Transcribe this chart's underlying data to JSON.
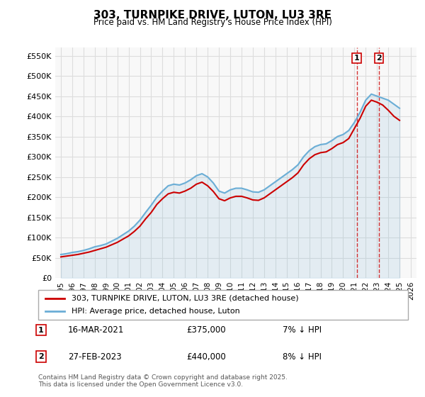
{
  "title": "303, TURNPIKE DRIVE, LUTON, LU3 3RE",
  "subtitle": "Price paid vs. HM Land Registry's House Price Index (HPI)",
  "ylabel_ticks": [
    "£0",
    "£50K",
    "£100K",
    "£150K",
    "£200K",
    "£250K",
    "£300K",
    "£350K",
    "£400K",
    "£450K",
    "£500K",
    "£550K"
  ],
  "ylim": [
    0,
    570000
  ],
  "xlim_start": 1994.5,
  "xlim_end": 2026.5,
  "hpi_color": "#6baed6",
  "price_color": "#cc0000",
  "grid_color": "#dddddd",
  "background_color": "#f8f8f8",
  "sale1_year": 2021.2,
  "sale1_price": 375000,
  "sale2_year": 2023.17,
  "sale2_price": 440000,
  "legend_label_red": "303, TURNPIKE DRIVE, LUTON, LU3 3RE (detached house)",
  "legend_label_blue": "HPI: Average price, detached house, Luton",
  "annotation1_date": "16-MAR-2021",
  "annotation1_price": "£375,000",
  "annotation1_hpi": "7% ↓ HPI",
  "annotation2_date": "27-FEB-2023",
  "annotation2_price": "£440,000",
  "annotation2_hpi": "8% ↓ HPI",
  "footer": "Contains HM Land Registry data © Crown copyright and database right 2025.\nThis data is licensed under the Open Government Licence v3.0.",
  "hpi_data": {
    "years": [
      1995,
      1995.5,
      1996,
      1996.5,
      1997,
      1997.5,
      1998,
      1998.5,
      1999,
      1999.5,
      2000,
      2000.5,
      2001,
      2001.5,
      2002,
      2002.5,
      2003,
      2003.5,
      2004,
      2004.5,
      2005,
      2005.5,
      2006,
      2006.5,
      2007,
      2007.5,
      2008,
      2008.5,
      2009,
      2009.5,
      2010,
      2010.5,
      2011,
      2011.5,
      2012,
      2012.5,
      2013,
      2013.5,
      2014,
      2014.5,
      2015,
      2015.5,
      2016,
      2016.5,
      2017,
      2017.5,
      2018,
      2018.5,
      2019,
      2019.5,
      2020,
      2020.5,
      2021,
      2021.5,
      2022,
      2022.5,
      2023,
      2023.5,
      2024,
      2024.5,
      2025
    ],
    "values": [
      58000,
      60000,
      63000,
      65000,
      68000,
      72000,
      77000,
      80000,
      84000,
      91000,
      98000,
      107000,
      116000,
      128000,
      143000,
      162000,
      180000,
      200000,
      215000,
      228000,
      232000,
      230000,
      235000,
      243000,
      253000,
      258000,
      250000,
      235000,
      215000,
      210000,
      218000,
      222000,
      222000,
      218000,
      213000,
      212000,
      218000,
      228000,
      238000,
      248000,
      258000,
      268000,
      280000,
      300000,
      315000,
      325000,
      330000,
      332000,
      340000,
      350000,
      355000,
      365000,
      385000,
      410000,
      440000,
      455000,
      450000,
      445000,
      440000,
      430000,
      420000
    ]
  },
  "price_data": {
    "years": [
      1995,
      1995.5,
      1996,
      1996.5,
      1997,
      1997.5,
      1998,
      1998.5,
      1999,
      1999.5,
      2000,
      2000.5,
      2001,
      2001.5,
      2002,
      2002.5,
      2003,
      2003.5,
      2004,
      2004.5,
      2005,
      2005.5,
      2006,
      2006.5,
      2007,
      2007.5,
      2008,
      2008.5,
      2009,
      2009.5,
      2010,
      2010.5,
      2011,
      2011.5,
      2012,
      2012.5,
      2013,
      2013.5,
      2014,
      2014.5,
      2015,
      2015.5,
      2016,
      2016.5,
      2017,
      2017.5,
      2018,
      2018.5,
      2019,
      2019.5,
      2020,
      2020.5,
      2021,
      2021.5,
      2022,
      2022.5,
      2023,
      2023.5,
      2024,
      2024.5,
      2025
    ],
    "values": [
      52000,
      54000,
      56000,
      58000,
      61000,
      64000,
      68000,
      72000,
      76000,
      82000,
      88000,
      96000,
      104000,
      115000,
      128000,
      146000,
      162000,
      182000,
      196000,
      208000,
      212000,
      210000,
      215000,
      222000,
      232000,
      237000,
      228000,
      214000,
      196000,
      191000,
      198000,
      202000,
      202000,
      198000,
      193000,
      192000,
      198000,
      208000,
      218000,
      228000,
      238000,
      248000,
      260000,
      280000,
      295000,
      305000,
      310000,
      312000,
      320000,
      330000,
      335000,
      345000,
      370000,
      395000,
      425000,
      440000,
      435000,
      428000,
      415000,
      400000,
      390000
    ]
  }
}
